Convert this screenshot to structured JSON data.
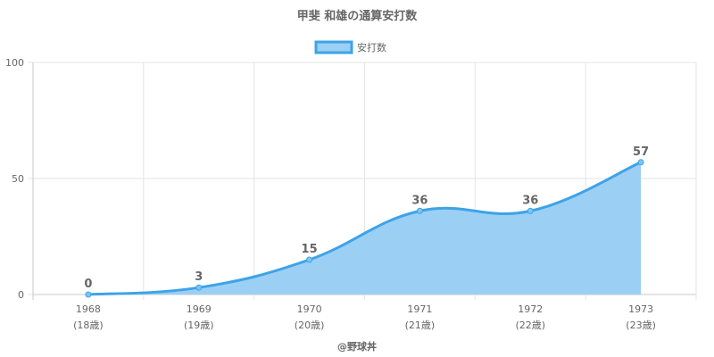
{
  "chart_data": {
    "type": "area",
    "title": "甲斐 和雄の通算安打数",
    "categories": [
      "1968",
      "1969",
      "1970",
      "1971",
      "1972",
      "1973"
    ],
    "sublabels": [
      "(18歳)",
      "(19歳)",
      "(20歳)",
      "(21歳)",
      "(22歳)",
      "(23歳)"
    ],
    "series": [
      {
        "name": "安打数",
        "values": [
          0,
          3,
          15,
          36,
          36,
          57
        ]
      }
    ],
    "data_labels": [
      "0",
      "3",
      "15",
      "36",
      "36",
      "57"
    ],
    "ylim": [
      0,
      100
    ],
    "yticks": [
      "0",
      "50",
      "100"
    ],
    "ytick_values": [
      0,
      50,
      100
    ],
    "grid": true,
    "legend_position": "top-center",
    "colors": {
      "line": "#3da3e8",
      "fill": "#9ccff4",
      "point": "#7cc4f4"
    }
  },
  "credit": "@野球丼"
}
